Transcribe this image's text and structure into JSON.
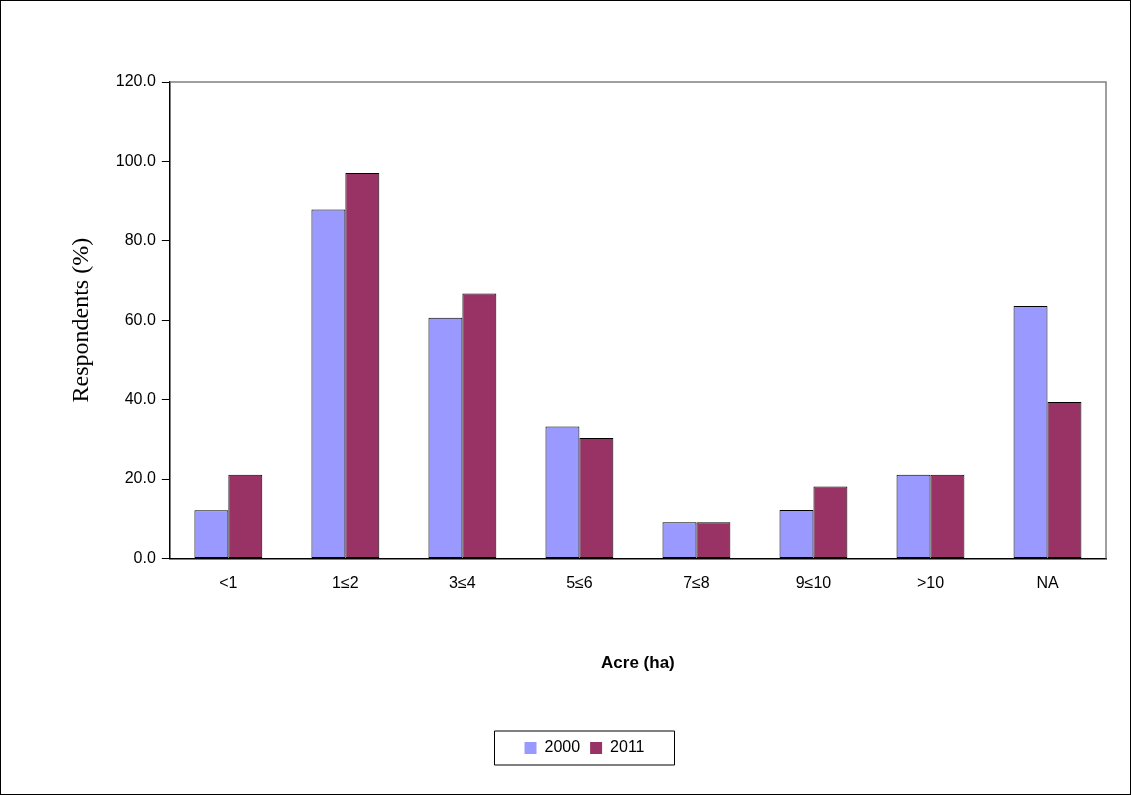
{
  "chart_data": {
    "type": "bar",
    "xlabel": "Acre (ha)",
    "ylabel": "Respondents (%)",
    "categories": [
      "<1",
      "1≤2",
      "3≤4",
      "5≤6",
      "7≤8",
      "9≤10",
      ">10",
      "NA"
    ],
    "series": [
      {
        "name": "2000",
        "color": "#9999ff",
        "values": [
          12.1,
          87.9,
          60.6,
          33.2,
          9.1,
          12.2,
          21.1,
          63.6
        ]
      },
      {
        "name": "2011",
        "color": "#993366",
        "values": [
          21.1,
          97.1,
          66.7,
          30.3,
          9.1,
          18.1,
          21.1,
          39.4
        ]
      }
    ],
    "ylim": [
      0,
      120
    ],
    "yticks": [
      {
        "value": 0,
        "label": "0.0"
      },
      {
        "value": 20,
        "label": "20.0"
      },
      {
        "value": 40,
        "label": "40.0"
      },
      {
        "value": 60,
        "label": "60.0"
      },
      {
        "value": 80,
        "label": "80.0"
      },
      {
        "value": 100,
        "label": "100.0"
      },
      {
        "value": 120,
        "label": "120.0"
      }
    ],
    "grid": false,
    "legend": "bottom"
  }
}
